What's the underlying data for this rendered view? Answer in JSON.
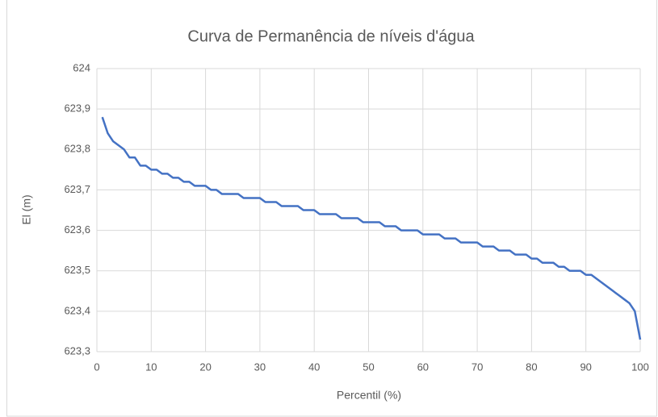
{
  "chart_data": {
    "type": "line",
    "title": "Curva de Permanência de níveis d'água",
    "x_label": "Percentil (%)",
    "y_label": "El (m)",
    "x": [
      1,
      2,
      3,
      4,
      5,
      6,
      7,
      8,
      9,
      10,
      11,
      12,
      13,
      14,
      15,
      16,
      17,
      18,
      19,
      20,
      21,
      22,
      23,
      24,
      25,
      26,
      27,
      28,
      29,
      30,
      31,
      32,
      33,
      34,
      35,
      36,
      37,
      38,
      39,
      40,
      41,
      42,
      43,
      44,
      45,
      46,
      47,
      48,
      49,
      50,
      51,
      52,
      53,
      54,
      55,
      56,
      57,
      58,
      59,
      60,
      61,
      62,
      63,
      64,
      65,
      66,
      67,
      68,
      69,
      70,
      71,
      72,
      73,
      74,
      75,
      76,
      77,
      78,
      79,
      80,
      81,
      82,
      83,
      84,
      85,
      86,
      87,
      88,
      89,
      90,
      91,
      92,
      93,
      94,
      95,
      96,
      97,
      98,
      99,
      100
    ],
    "series": [
      {
        "name": "El",
        "color": "#4472c4",
        "values": [
          623.88,
          623.84,
          623.82,
          623.81,
          623.8,
          623.78,
          623.78,
          623.76,
          623.76,
          623.75,
          623.75,
          623.74,
          623.74,
          623.73,
          623.73,
          623.72,
          623.72,
          623.71,
          623.71,
          623.71,
          623.7,
          623.7,
          623.69,
          623.69,
          623.69,
          623.69,
          623.68,
          623.68,
          623.68,
          623.68,
          623.67,
          623.67,
          623.67,
          623.66,
          623.66,
          623.66,
          623.66,
          623.65,
          623.65,
          623.65,
          623.64,
          623.64,
          623.64,
          623.64,
          623.63,
          623.63,
          623.63,
          623.63,
          623.62,
          623.62,
          623.62,
          623.62,
          623.61,
          623.61,
          623.61,
          623.6,
          623.6,
          623.6,
          623.6,
          623.59,
          623.59,
          623.59,
          623.59,
          623.58,
          623.58,
          623.58,
          623.57,
          623.57,
          623.57,
          623.57,
          623.56,
          623.56,
          623.56,
          623.55,
          623.55,
          623.55,
          623.54,
          623.54,
          623.54,
          623.53,
          623.53,
          623.52,
          623.52,
          623.52,
          623.51,
          623.51,
          623.5,
          623.5,
          623.5,
          623.49,
          623.49,
          623.48,
          623.47,
          623.46,
          623.45,
          623.44,
          623.43,
          623.42,
          623.4,
          623.33
        ]
      }
    ],
    "xlim": [
      0,
      100
    ],
    "xticks": [
      0,
      10,
      20,
      30,
      40,
      50,
      60,
      70,
      80,
      90,
      100
    ],
    "ylim": [
      623.3,
      624
    ],
    "yticks": [
      {
        "value": 623.3,
        "label": "623,3"
      },
      {
        "value": 623.4,
        "label": "623,4"
      },
      {
        "value": 623.5,
        "label": "623,5"
      },
      {
        "value": 623.6,
        "label": "623,6"
      },
      {
        "value": 623.7,
        "label": "623,7"
      },
      {
        "value": 623.8,
        "label": "623,8"
      },
      {
        "value": 623.9,
        "label": "623,9"
      },
      624
    ],
    "grid": true
  }
}
